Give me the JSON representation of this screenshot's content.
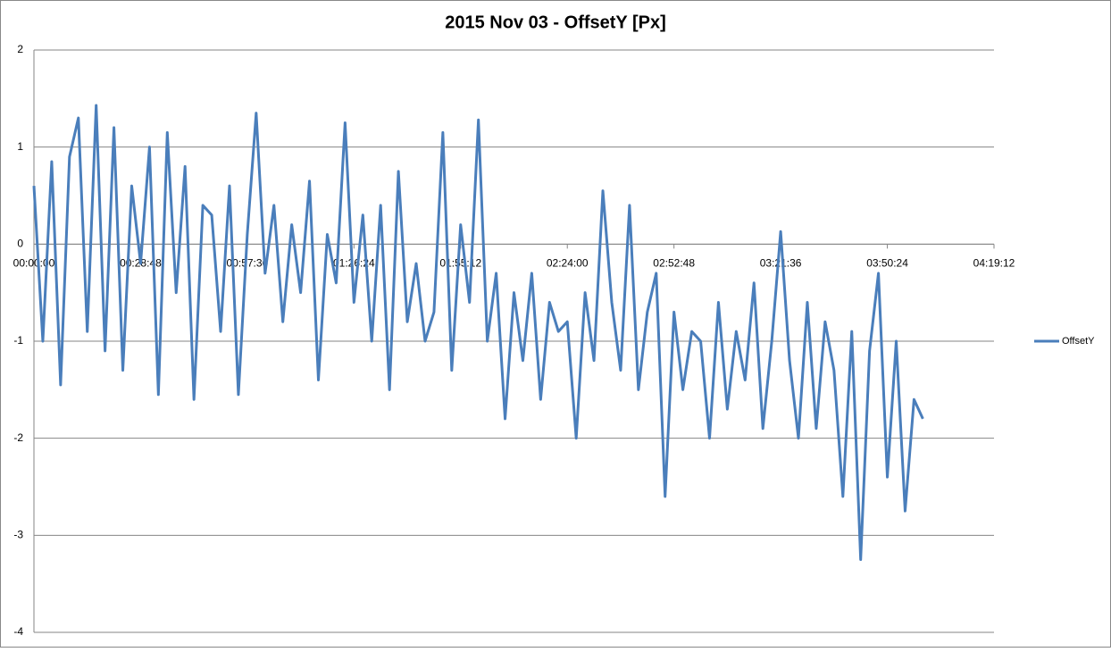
{
  "chart_data": {
    "type": "line",
    "title": "2015 Nov 03 -  OffsetY [Px]",
    "x": [
      "00:00:00",
      "00:02:24",
      "00:04:48",
      "00:07:12",
      "00:09:36",
      "00:12:00",
      "00:14:24",
      "00:16:48",
      "00:19:12",
      "00:21:36",
      "00:24:00",
      "00:26:24",
      "00:28:48",
      "00:31:12",
      "00:33:36",
      "00:36:00",
      "00:38:24",
      "00:40:48",
      "00:43:12",
      "00:45:36",
      "00:48:00",
      "00:50:24",
      "00:52:48",
      "00:55:12",
      "00:57:36",
      "01:00:00",
      "01:02:24",
      "01:04:48",
      "01:07:12",
      "01:09:36",
      "01:12:00",
      "01:14:24",
      "01:16:48",
      "01:19:12",
      "01:21:36",
      "01:24:00",
      "01:26:24",
      "01:28:48",
      "01:31:12",
      "01:33:36",
      "01:36:00",
      "01:38:24",
      "01:40:48",
      "01:43:12",
      "01:45:36",
      "01:48:00",
      "01:50:24",
      "01:52:48",
      "01:55:12",
      "01:57:36",
      "02:00:00",
      "02:02:24",
      "02:04:48",
      "02:07:12",
      "02:09:36",
      "02:12:00",
      "02:14:24",
      "02:16:48",
      "02:19:12",
      "02:21:36",
      "02:24:00",
      "02:26:24",
      "02:28:48",
      "02:31:12",
      "02:33:36",
      "02:36:00",
      "02:38:24",
      "02:40:48",
      "02:43:12",
      "02:45:36",
      "02:48:00",
      "02:50:24",
      "02:52:48",
      "02:55:12",
      "02:57:36",
      "03:00:00",
      "03:02:24",
      "03:04:48",
      "03:07:12",
      "03:09:36",
      "03:12:00",
      "03:14:24",
      "03:16:48",
      "03:19:12",
      "03:21:36",
      "03:24:00",
      "03:26:24",
      "03:28:48",
      "03:31:12",
      "03:33:36",
      "03:36:00",
      "03:38:24",
      "03:40:48",
      "03:43:12",
      "03:45:36",
      "03:48:00",
      "03:50:24",
      "03:52:48",
      "03:55:12",
      "03:57:36",
      "04:00:00"
    ],
    "series": [
      {
        "name": "OffsetY",
        "color": "#4a7ebb",
        "values": [
          0.6,
          -1.0,
          0.85,
          -1.45,
          0.9,
          1.3,
          -0.9,
          1.43,
          -1.1,
          1.2,
          -1.3,
          0.6,
          -0.2,
          1.0,
          -1.55,
          1.15,
          -0.5,
          0.8,
          -1.6,
          0.4,
          0.3,
          -0.9,
          0.6,
          -1.55,
          0.1,
          1.35,
          -0.3,
          0.4,
          -0.8,
          0.2,
          -0.5,
          0.65,
          -1.4,
          0.1,
          -0.4,
          1.25,
          -0.6,
          0.3,
          -1.0,
          0.4,
          -1.5,
          0.75,
          -0.8,
          -0.2,
          -1.0,
          -0.7,
          1.15,
          -1.3,
          0.2,
          -0.6,
          1.28,
          -1.0,
          -0.3,
          -1.8,
          -0.5,
          -1.2,
          -0.3,
          -1.6,
          -0.6,
          -0.9,
          -0.8,
          -2.0,
          -0.5,
          -1.2,
          0.55,
          -0.6,
          -1.3,
          0.4,
          -1.5,
          -0.7,
          -0.3,
          -2.6,
          -0.7,
          -1.5,
          -0.9,
          -1.0,
          -2.0,
          -0.6,
          -1.7,
          -0.9,
          -1.4,
          -0.4,
          -1.9,
          -1.0,
          0.13,
          -1.2,
          -2.0,
          -0.6,
          -1.9,
          -0.8,
          -1.3,
          -2.6,
          -0.9,
          -3.25,
          -1.1,
          -0.3,
          -2.4,
          -1.0,
          -2.75,
          -1.6,
          -1.8
        ]
      }
    ],
    "xlim": [
      "00:00:00",
      "04:19:12"
    ],
    "xticks": [
      "00:00:00",
      "00:28:48",
      "00:57:36",
      "01:26:24",
      "01:55:12",
      "02:24:00",
      "02:52:48",
      "03:21:36",
      "03:50:24",
      "04:19:12"
    ],
    "ylim": [
      -4,
      2
    ],
    "yticks": [
      -4,
      -3,
      -2,
      -1,
      0,
      1,
      2
    ],
    "grid": true,
    "legend": "right"
  }
}
